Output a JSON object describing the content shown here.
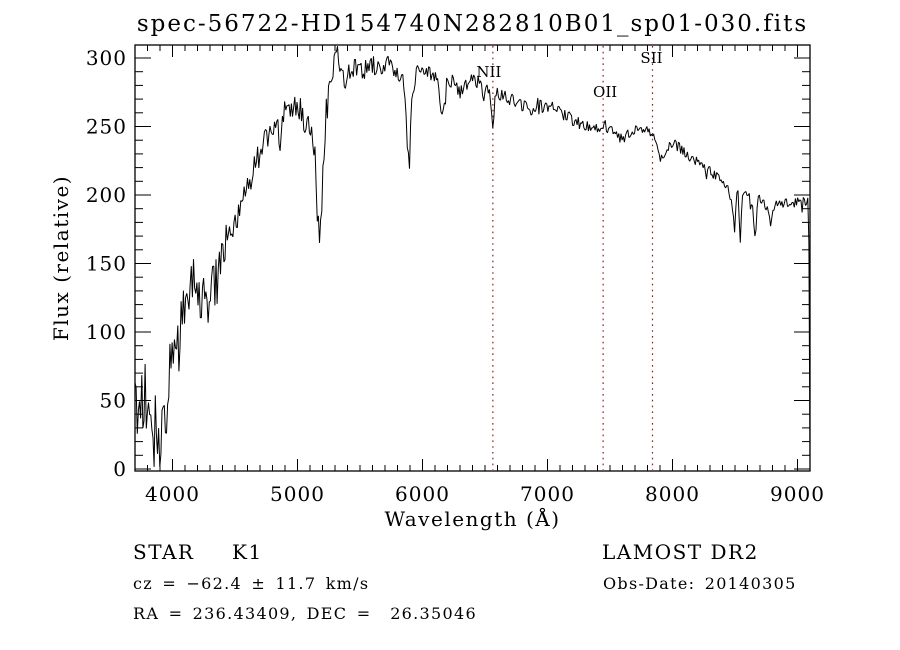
{
  "title": "spec-56722-HD154740N282810B01_sp01-030.fits",
  "footer": {
    "class_label": "STAR",
    "subclass": "K1",
    "survey": "LAMOST DR2",
    "cz": "cz = −62.4 ± 11.7 km/s",
    "obs_date": "Obs-Date: 20140305",
    "coords": "RA = 236.43409, DEC =  26.35046"
  },
  "chart_data": {
    "type": "line",
    "title": "spec-56722-HD154740N282810B01_sp01-030.fits",
    "xlabel": "Wavelength (Å)",
    "ylabel": "Flux (relative)",
    "xlim": [
      3700,
      9100
    ],
    "ylim": [
      0,
      310
    ],
    "x_ticks": [
      4000,
      5000,
      6000,
      7000,
      8000,
      9000
    ],
    "y_ticks": [
      0,
      50,
      100,
      150,
      200,
      250,
      300
    ],
    "x_minor_step": 100,
    "y_minor_step": 10,
    "grid": false,
    "line_color": "#000000",
    "axis_color": "#000000",
    "marker_color": "#8b2323",
    "marker_lines": [
      {
        "label": "NII",
        "wavelength": 6563,
        "label_dx": -4,
        "label_y": 77
      },
      {
        "label": "OII",
        "wavelength": 7445,
        "label_dx": 2,
        "label_y": 97
      },
      {
        "label": "SII",
        "wavelength": 7840,
        "label_dx": -1,
        "label_y": 63
      }
    ],
    "noise_amp": [
      [
        3700,
        4100,
        24
      ],
      [
        4100,
        4350,
        16
      ],
      [
        4350,
        4700,
        13
      ],
      [
        4700,
        5250,
        12
      ],
      [
        5250,
        5750,
        8
      ],
      [
        5750,
        6450,
        6
      ],
      [
        6450,
        7300,
        5
      ],
      [
        7300,
        8300,
        4
      ],
      [
        8300,
        9100,
        4
      ]
    ],
    "series": [
      {
        "name": "flux",
        "anchors": [
          [
            3700,
            42
          ],
          [
            3715,
            62
          ],
          [
            3730,
            38
          ],
          [
            3745,
            55
          ],
          [
            3760,
            48
          ],
          [
            3775,
            58
          ],
          [
            3790,
            46
          ],
          [
            3805,
            52
          ],
          [
            3820,
            40
          ],
          [
            3835,
            32
          ],
          [
            3850,
            26
          ],
          [
            3865,
            31
          ],
          [
            3880,
            29
          ],
          [
            3895,
            34
          ],
          [
            3910,
            30
          ],
          [
            3925,
            27
          ],
          [
            3940,
            33
          ],
          [
            3955,
            45
          ],
          [
            3970,
            62
          ],
          [
            3985,
            78
          ],
          [
            4000,
            90
          ],
          [
            4015,
            80
          ],
          [
            4030,
            65
          ],
          [
            4045,
            85
          ],
          [
            4060,
            95
          ],
          [
            4075,
            103
          ],
          [
            4090,
            110
          ],
          [
            4105,
            112
          ],
          [
            4120,
            122
          ],
          [
            4135,
            130
          ],
          [
            4150,
            133
          ],
          [
            4165,
            137
          ],
          [
            4180,
            141
          ],
          [
            4200,
            138
          ],
          [
            4215,
            126
          ],
          [
            4226,
            117
          ],
          [
            4240,
            128
          ],
          [
            4255,
            134
          ],
          [
            4270,
            127
          ],
          [
            4285,
            122
          ],
          [
            4300,
            120
          ],
          [
            4315,
            132
          ],
          [
            4330,
            138
          ],
          [
            4345,
            143
          ],
          [
            4360,
            153
          ],
          [
            4375,
            148
          ],
          [
            4390,
            152
          ],
          [
            4405,
            158
          ],
          [
            4420,
            163
          ],
          [
            4435,
            167
          ],
          [
            4450,
            171
          ],
          [
            4470,
            176
          ],
          [
            4490,
            181
          ],
          [
            4510,
            188
          ],
          [
            4530,
            181
          ],
          [
            4550,
            186
          ],
          [
            4570,
            196
          ],
          [
            4590,
            203
          ],
          [
            4610,
            208
          ],
          [
            4630,
            213
          ],
          [
            4650,
            216
          ],
          [
            4670,
            220
          ],
          [
            4690,
            226
          ],
          [
            4710,
            230
          ],
          [
            4730,
            236
          ],
          [
            4750,
            241
          ],
          [
            4770,
            246
          ],
          [
            4790,
            252
          ],
          [
            4810,
            256
          ],
          [
            4830,
            248
          ],
          [
            4850,
            243
          ],
          [
            4861,
            239
          ],
          [
            4875,
            252
          ],
          [
            4890,
            260
          ],
          [
            4905,
            266
          ],
          [
            4920,
            259
          ],
          [
            4935,
            255
          ],
          [
            4950,
            261
          ],
          [
            4965,
            265
          ],
          [
            4980,
            268
          ],
          [
            5000,
            271
          ],
          [
            5020,
            263
          ],
          [
            5040,
            257
          ],
          [
            5060,
            253
          ],
          [
            5080,
            250
          ],
          [
            5100,
            246
          ],
          [
            5120,
            237
          ],
          [
            5140,
            228
          ],
          [
            5160,
            185
          ],
          [
            5175,
            168
          ],
          [
            5190,
            190
          ],
          [
            5205,
            222
          ],
          [
            5220,
            248
          ],
          [
            5235,
            264
          ],
          [
            5250,
            277
          ],
          [
            5270,
            287
          ],
          [
            5290,
            296
          ],
          [
            5310,
            303
          ],
          [
            5325,
            307
          ],
          [
            5340,
            294
          ],
          [
            5360,
            288
          ],
          [
            5380,
            285
          ],
          [
            5400,
            287
          ],
          [
            5425,
            290
          ],
          [
            5450,
            292
          ],
          [
            5475,
            293
          ],
          [
            5500,
            294
          ],
          [
            5530,
            292
          ],
          [
            5560,
            293
          ],
          [
            5590,
            295
          ],
          [
            5620,
            293
          ],
          [
            5650,
            292
          ],
          [
            5680,
            294
          ],
          [
            5710,
            295
          ],
          [
            5740,
            293
          ],
          [
            5770,
            291
          ],
          [
            5800,
            289
          ],
          [
            5830,
            286
          ],
          [
            5855,
            280
          ],
          [
            5880,
            235
          ],
          [
            5895,
            222
          ],
          [
            5910,
            262
          ],
          [
            5930,
            281
          ],
          [
            5950,
            288
          ],
          [
            5975,
            291
          ],
          [
            6000,
            293
          ],
          [
            6030,
            292
          ],
          [
            6060,
            290
          ],
          [
            6090,
            287
          ],
          [
            6120,
            281
          ],
          [
            6145,
            268
          ],
          [
            6160,
            260
          ],
          [
            6180,
            276
          ],
          [
            6210,
            284
          ],
          [
            6240,
            282
          ],
          [
            6270,
            279
          ],
          [
            6300,
            276
          ],
          [
            6330,
            279
          ],
          [
            6360,
            282
          ],
          [
            6390,
            284
          ],
          [
            6420,
            283
          ],
          [
            6450,
            281
          ],
          [
            6475,
            276
          ],
          [
            6495,
            270
          ],
          [
            6515,
            276
          ],
          [
            6535,
            274
          ],
          [
            6550,
            270
          ],
          [
            6563,
            244
          ],
          [
            6580,
            270
          ],
          [
            6600,
            274
          ],
          [
            6625,
            273
          ],
          [
            6650,
            272
          ],
          [
            6675,
            270
          ],
          [
            6700,
            270
          ],
          [
            6730,
            268
          ],
          [
            6760,
            267
          ],
          [
            6790,
            266
          ],
          [
            6820,
            264
          ],
          [
            6850,
            261
          ],
          [
            6870,
            259
          ],
          [
            6890,
            264
          ],
          [
            6920,
            266
          ],
          [
            6950,
            265
          ],
          [
            6980,
            264
          ],
          [
            7010,
            264
          ],
          [
            7040,
            263
          ],
          [
            7070,
            262
          ],
          [
            7100,
            261
          ],
          [
            7130,
            259
          ],
          [
            7160,
            258
          ],
          [
            7190,
            256
          ],
          [
            7220,
            255
          ],
          [
            7250,
            253
          ],
          [
            7280,
            252
          ],
          [
            7310,
            251
          ],
          [
            7340,
            250
          ],
          [
            7370,
            249
          ],
          [
            7400,
            249
          ],
          [
            7430,
            251
          ],
          [
            7455,
            253
          ],
          [
            7480,
            249
          ],
          [
            7510,
            246
          ],
          [
            7540,
            244
          ],
          [
            7570,
            242
          ],
          [
            7600,
            240
          ],
          [
            7630,
            244
          ],
          [
            7660,
            246
          ],
          [
            7690,
            248
          ],
          [
            7720,
            249
          ],
          [
            7750,
            249
          ],
          [
            7780,
            248
          ],
          [
            7810,
            246
          ],
          [
            7840,
            243
          ],
          [
            7870,
            235
          ],
          [
            7895,
            228
          ],
          [
            7915,
            225
          ],
          [
            7935,
            231
          ],
          [
            7960,
            235
          ],
          [
            7985,
            237
          ],
          [
            8010,
            237
          ],
          [
            8040,
            235
          ],
          [
            8070,
            233
          ],
          [
            8100,
            231
          ],
          [
            8130,
            229
          ],
          [
            8160,
            227
          ],
          [
            8190,
            224
          ],
          [
            8220,
            222
          ],
          [
            8250,
            220
          ],
          [
            8280,
            218
          ],
          [
            8310,
            216
          ],
          [
            8340,
            215
          ],
          [
            8370,
            214
          ],
          [
            8400,
            212
          ],
          [
            8430,
            207
          ],
          [
            8455,
            200
          ],
          [
            8475,
            193
          ],
          [
            8498,
            174
          ],
          [
            8510,
            196
          ],
          [
            8525,
            204
          ],
          [
            8542,
            165
          ],
          [
            8558,
            200
          ],
          [
            8575,
            203
          ],
          [
            8600,
            201
          ],
          [
            8620,
            197
          ],
          [
            8640,
            193
          ],
          [
            8662,
            164
          ],
          [
            8680,
            196
          ],
          [
            8700,
            199
          ],
          [
            8725,
            197
          ],
          [
            8750,
            192
          ],
          [
            8775,
            185
          ],
          [
            8790,
            180
          ],
          [
            8805,
            192
          ],
          [
            8825,
            196
          ],
          [
            8850,
            192
          ],
          [
            8875,
            194
          ],
          [
            8900,
            196
          ],
          [
            8925,
            195
          ],
          [
            8950,
            194
          ],
          [
            8975,
            195
          ],
          [
            9000,
            196
          ],
          [
            9025,
            197
          ],
          [
            9050,
            197
          ],
          [
            9070,
            196
          ],
          [
            9085,
            194
          ],
          [
            9094,
            150
          ],
          [
            9100,
            5
          ]
        ]
      }
    ]
  }
}
